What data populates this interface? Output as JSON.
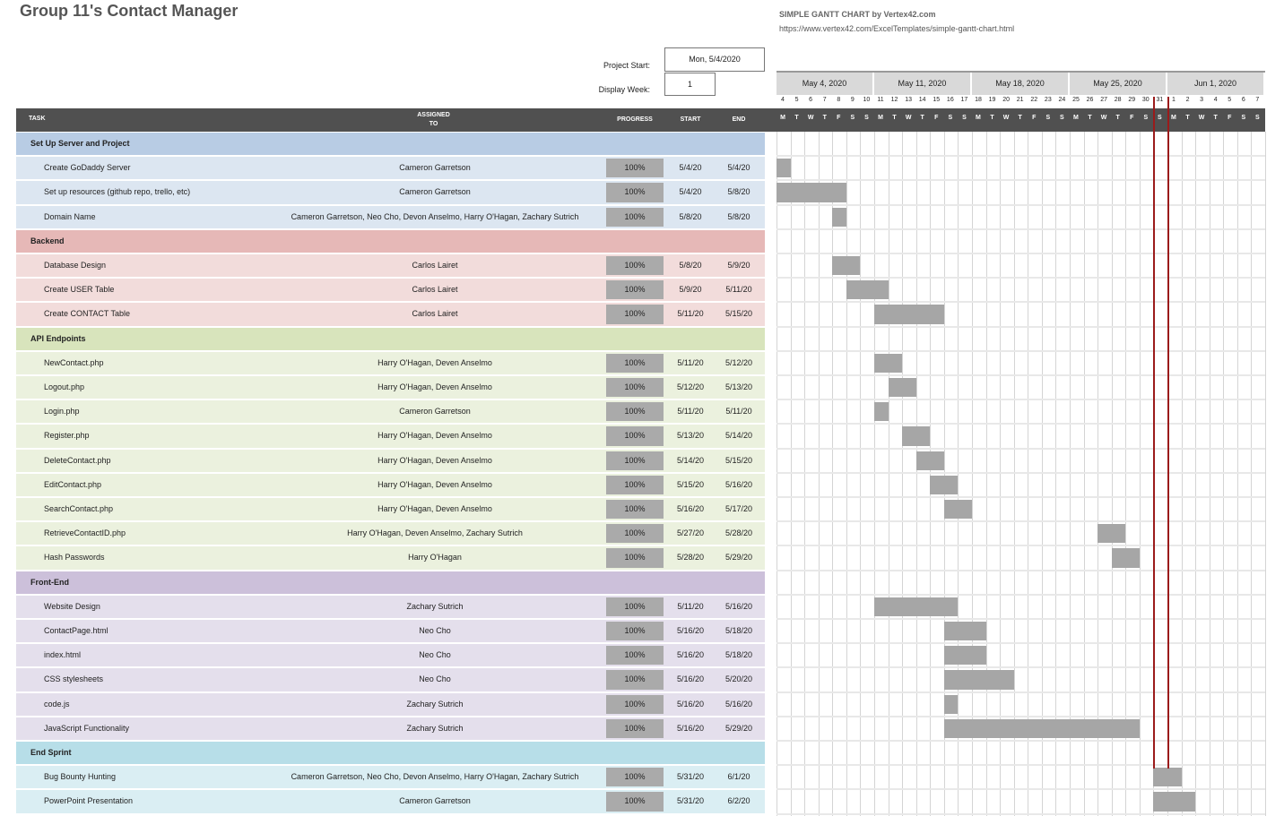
{
  "title": "Group 11's Contact Manager",
  "credit": {
    "line1": "SIMPLE GANTT CHART by Vertex42.com",
    "line2": "https://www.vertex42.com/ExcelTemplates/simple-gantt-chart.html"
  },
  "controls": {
    "project_start_label": "Project Start:",
    "project_start_value": "Mon, 5/4/2020",
    "display_week_label": "Display Week:",
    "display_week_value": "1"
  },
  "columns": {
    "task": "TASK",
    "assigned": "ASSIGNED TO",
    "progress": "PROGRESS",
    "start": "START",
    "end": "END"
  },
  "weeks": [
    "May 4, 2020",
    "May 11, 2020",
    "May 18, 2020",
    "May 25, 2020",
    "Jun 1, 2020"
  ],
  "days": [
    "4",
    "5",
    "6",
    "7",
    "8",
    "9",
    "10",
    "11",
    "12",
    "13",
    "14",
    "15",
    "16",
    "17",
    "18",
    "19",
    "20",
    "21",
    "22",
    "23",
    "24",
    "25",
    "26",
    "27",
    "28",
    "29",
    "30",
    "31",
    "1",
    "2",
    "3",
    "4",
    "5",
    "6",
    "7"
  ],
  "day_letters": [
    "M",
    "T",
    "W",
    "T",
    "F",
    "S",
    "S",
    "M",
    "T",
    "W",
    "T",
    "F",
    "S",
    "S",
    "M",
    "T",
    "W",
    "T",
    "F",
    "S",
    "S",
    "M",
    "T",
    "W",
    "T",
    "F",
    "S",
    "S",
    "M",
    "T",
    "W",
    "T",
    "F",
    "S",
    "S"
  ],
  "colors": {
    "phase1": "#b8cce4",
    "task1": "#dce6f1",
    "phase2": "#e6b8b7",
    "task2": "#f2dcdb",
    "phase3": "#d8e4bc",
    "task3": "#ebf1de",
    "phase4": "#ccc0da",
    "task4": "#e4dfec",
    "phase5": "#b7dee8",
    "task5": "#daeef3",
    "bar": "#a6a6a6",
    "today_line": "#9b1b1b"
  },
  "rows": [
    {
      "type": "phase",
      "group": 1,
      "name": "Set Up Server and Project"
    },
    {
      "type": "task",
      "group": 1,
      "name": "Create GoDaddy Server",
      "assigned": "Cameron Garretson",
      "progress": "100%",
      "start": "5/4/20",
      "end": "5/4/20",
      "s": 0,
      "e": 0
    },
    {
      "type": "task",
      "group": 1,
      "name": "Set up resources (github repo, trello, etc)",
      "assigned": "Cameron Garretson",
      "progress": "100%",
      "start": "5/4/20",
      "end": "5/8/20",
      "s": 0,
      "e": 4
    },
    {
      "type": "task",
      "group": 1,
      "name": "Domain Name",
      "assigned": "Cameron Garretson, Neo Cho, Devon Anselmo, Harry O'Hagan, Zachary Sutrich",
      "progress": "100%",
      "start": "5/8/20",
      "end": "5/8/20",
      "s": 4,
      "e": 4
    },
    {
      "type": "phase",
      "group": 2,
      "name": "Backend"
    },
    {
      "type": "task",
      "group": 2,
      "name": "Database Design",
      "assigned": "Carlos Lairet",
      "progress": "100%",
      "start": "5/8/20",
      "end": "5/9/20",
      "s": 4,
      "e": 5
    },
    {
      "type": "task",
      "group": 2,
      "name": "Create USER Table",
      "assigned": "Carlos Lairet",
      "progress": "100%",
      "start": "5/9/20",
      "end": "5/11/20",
      "s": 5,
      "e": 7
    },
    {
      "type": "task",
      "group": 2,
      "name": "Create CONTACT Table",
      "assigned": "Carlos Lairet",
      "progress": "100%",
      "start": "5/11/20",
      "end": "5/15/20",
      "s": 7,
      "e": 11
    },
    {
      "type": "phase",
      "group": 3,
      "name": "API Endpoints"
    },
    {
      "type": "task",
      "group": 3,
      "name": "NewContact.php",
      "assigned": "Harry O'Hagan, Deven Anselmo",
      "progress": "100%",
      "start": "5/11/20",
      "end": "5/12/20",
      "s": 7,
      "e": 8
    },
    {
      "type": "task",
      "group": 3,
      "name": "Logout.php",
      "assigned": "Harry O'Hagan, Deven Anselmo",
      "progress": "100%",
      "start": "5/12/20",
      "end": "5/13/20",
      "s": 8,
      "e": 9
    },
    {
      "type": "task",
      "group": 3,
      "name": "Login.php",
      "assigned": "Cameron Garretson",
      "progress": "100%",
      "start": "5/11/20",
      "end": "5/11/20",
      "s": 7,
      "e": 7
    },
    {
      "type": "task",
      "group": 3,
      "name": "Register.php",
      "assigned": "Harry O'Hagan, Deven Anselmo",
      "progress": "100%",
      "start": "5/13/20",
      "end": "5/14/20",
      "s": 9,
      "e": 10
    },
    {
      "type": "task",
      "group": 3,
      "name": "DeleteContact.php",
      "assigned": "Harry O'Hagan, Deven Anselmo",
      "progress": "100%",
      "start": "5/14/20",
      "end": "5/15/20",
      "s": 10,
      "e": 11
    },
    {
      "type": "task",
      "group": 3,
      "name": "EditContact.php",
      "assigned": "Harry O'Hagan, Deven Anselmo",
      "progress": "100%",
      "start": "5/15/20",
      "end": "5/16/20",
      "s": 11,
      "e": 12
    },
    {
      "type": "task",
      "group": 3,
      "name": "SearchContact.php",
      "assigned": "Harry O'Hagan, Deven Anselmo",
      "progress": "100%",
      "start": "5/16/20",
      "end": "5/17/20",
      "s": 12,
      "e": 13
    },
    {
      "type": "task",
      "group": 3,
      "name": "RetrieveContactID.php",
      "assigned": "Harry O'Hagan, Deven Anselmo, Zachary Sutrich",
      "progress": "100%",
      "start": "5/27/20",
      "end": "5/28/20",
      "s": 23,
      "e": 24
    },
    {
      "type": "task",
      "group": 3,
      "name": "Hash Passwords",
      "assigned": "Harry O'Hagan",
      "progress": "100%",
      "start": "5/28/20",
      "end": "5/29/20",
      "s": 24,
      "e": 25
    },
    {
      "type": "phase",
      "group": 4,
      "name": "Front-End"
    },
    {
      "type": "task",
      "group": 4,
      "name": "Website Design",
      "assigned": "Zachary Sutrich",
      "progress": "100%",
      "start": "5/11/20",
      "end": "5/16/20",
      "s": 7,
      "e": 12
    },
    {
      "type": "task",
      "group": 4,
      "name": "ContactPage.html",
      "assigned": "Neo Cho",
      "progress": "100%",
      "start": "5/16/20",
      "end": "5/18/20",
      "s": 12,
      "e": 14
    },
    {
      "type": "task",
      "group": 4,
      "name": "index.html",
      "assigned": "Neo Cho",
      "progress": "100%",
      "start": "5/16/20",
      "end": "5/18/20",
      "s": 12,
      "e": 14
    },
    {
      "type": "task",
      "group": 4,
      "name": "CSS stylesheets",
      "assigned": "Neo Cho",
      "progress": "100%",
      "start": "5/16/20",
      "end": "5/20/20",
      "s": 12,
      "e": 16
    },
    {
      "type": "task",
      "group": 4,
      "name": "code.js",
      "assigned": "Zachary Sutrich",
      "progress": "100%",
      "start": "5/16/20",
      "end": "5/16/20",
      "s": 12,
      "e": 12
    },
    {
      "type": "task",
      "group": 4,
      "name": "JavaScript Functionality",
      "assigned": "Zachary Sutrich",
      "progress": "100%",
      "start": "5/16/20",
      "end": "5/29/20",
      "s": 12,
      "e": 25
    },
    {
      "type": "phase",
      "group": 5,
      "name": "End Sprint"
    },
    {
      "type": "task",
      "group": 5,
      "name": "Bug Bounty Hunting",
      "assigned": "Cameron Garretson, Neo Cho, Devon Anselmo, Harry O'Hagan, Zachary Sutrich",
      "progress": "100%",
      "start": "5/31/20",
      "end": "6/1/20",
      "s": 27,
      "e": 28
    },
    {
      "type": "task",
      "group": 5,
      "name": "PowerPoint Presentation",
      "assigned": "Cameron Garretson",
      "progress": "100%",
      "start": "5/31/20",
      "end": "6/2/20",
      "s": 27,
      "e": 29
    }
  ]
}
